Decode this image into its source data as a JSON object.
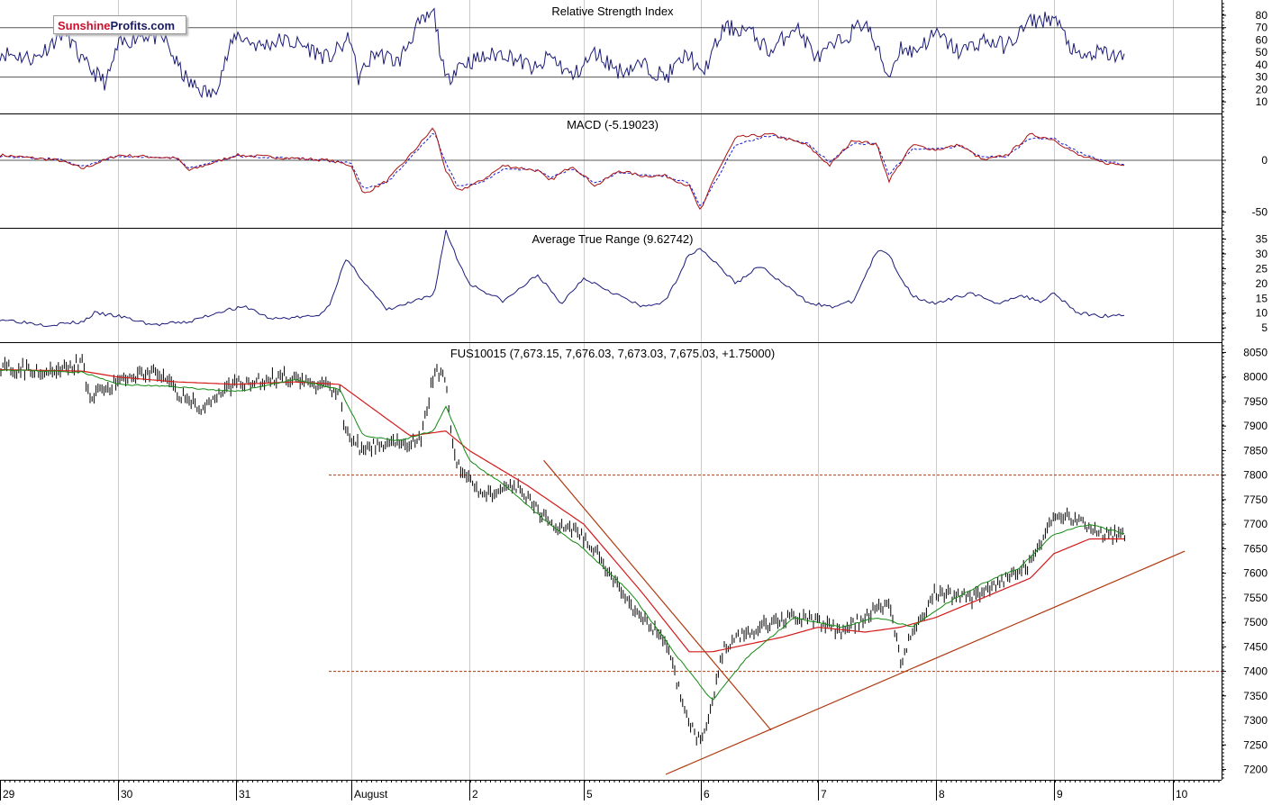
{
  "brand": {
    "part1": "Sunshine",
    "part2": "Profits.com"
  },
  "colors": {
    "background": "#ffffff",
    "axis": "#000000",
    "grid": "#cccccc",
    "indicator_line": "#1a1a7a",
    "price_bars": "#000000",
    "sma_fast": "#138a13",
    "sma_slow": "#d41a1a",
    "macd_signal": "#1a1acc",
    "macd_line": "#aa1111",
    "trendline": "#b03a10",
    "support": "#b03a10"
  },
  "x_axis": {
    "labels": [
      "29",
      "30",
      "31",
      "August",
      "2",
      "5",
      "6",
      "7",
      "8",
      "9",
      "10"
    ]
  },
  "chart_data": [
    {
      "type": "line",
      "title": "Relative Strength Index",
      "y_ticks": [
        "80",
        "70",
        "60",
        "50",
        "40",
        "30",
        "20",
        "10"
      ],
      "reference_lines": [
        70,
        30
      ],
      "ylim": [
        5,
        88
      ],
      "series": [
        {
          "x": [
            0,
            0.3,
            0.55,
            0.7,
            0.9,
            1.0,
            1.2,
            1.4,
            1.5,
            1.6,
            1.8,
            2.0,
            2.2,
            2.4,
            2.6,
            2.8,
            3.0,
            3.05,
            3.2,
            3.4,
            3.55,
            3.7,
            3.8,
            3.9,
            4.1,
            4.3,
            4.6,
            4.7,
            4.9,
            5.1,
            5.3,
            5.5,
            5.7,
            5.9,
            6.0,
            6.2,
            6.4,
            6.6,
            6.8,
            7.0,
            7.2,
            7.4,
            7.6,
            7.7,
            7.8,
            8.0,
            8.2,
            8.4,
            8.6,
            8.8,
            9.0,
            9.2,
            9.4,
            9.6
          ],
          "values": [
            50,
            45,
            68,
            42,
            25,
            55,
            65,
            60,
            40,
            25,
            15,
            65,
            55,
            60,
            55,
            45,
            62,
            28,
            50,
            42,
            70,
            82,
            25,
            40,
            45,
            50,
            35,
            48,
            30,
            50,
            35,
            40,
            30,
            50,
            30,
            70,
            68,
            50,
            72,
            45,
            60,
            75,
            30,
            55,
            50,
            65,
            50,
            60,
            55,
            75,
            78,
            45,
            50,
            45
          ]
        }
      ]
    },
    {
      "type": "line",
      "title": "MACD (-5.19023)",
      "y_ticks": [
        "0",
        "-50"
      ],
      "reference_lines": [
        0
      ],
      "ylim": [
        -60,
        40
      ],
      "series": [
        {
          "name": "MACD",
          "x": [
            0,
            0.5,
            0.7,
            1.0,
            1.5,
            1.6,
            2.0,
            2.5,
            2.8,
            3.0,
            3.1,
            3.3,
            3.5,
            3.7,
            3.8,
            3.9,
            4.1,
            4.3,
            4.6,
            4.7,
            4.9,
            5.1,
            5.3,
            5.5,
            5.7,
            5.9,
            6.0,
            6.1,
            6.3,
            6.6,
            6.9,
            7.1,
            7.3,
            7.5,
            7.6,
            7.8,
            8.0,
            8.2,
            8.4,
            8.6,
            8.8,
            9.0,
            9.2,
            9.4,
            9.6
          ],
          "values": [
            5,
            0,
            -8,
            5,
            2,
            -10,
            5,
            2,
            0,
            -5,
            -33,
            -20,
            5,
            32,
            -10,
            -30,
            -20,
            -5,
            -10,
            -20,
            -5,
            -25,
            -10,
            -15,
            -15,
            -25,
            -50,
            -20,
            22,
            25,
            15,
            -5,
            20,
            15,
            -20,
            15,
            10,
            15,
            0,
            5,
            25,
            20,
            5,
            -2,
            -5
          ]
        },
        {
          "name": "Signal",
          "x": [
            0,
            0.5,
            0.7,
            1.0,
            1.5,
            1.6,
            2.0,
            2.5,
            2.8,
            3.0,
            3.1,
            3.3,
            3.5,
            3.7,
            3.8,
            3.9,
            4.1,
            4.3,
            4.6,
            4.7,
            4.9,
            5.1,
            5.3,
            5.5,
            5.7,
            5.9,
            6.0,
            6.1,
            6.3,
            6.6,
            6.9,
            7.1,
            7.3,
            7.5,
            7.6,
            7.8,
            8.0,
            8.2,
            8.4,
            8.6,
            8.8,
            9.0,
            9.2,
            9.4,
            9.6
          ],
          "values": [
            4,
            1,
            -6,
            4,
            2,
            -8,
            4,
            2,
            0,
            -3,
            -28,
            -22,
            2,
            28,
            -2,
            -25,
            -22,
            -8,
            -9,
            -17,
            -8,
            -22,
            -12,
            -14,
            -15,
            -22,
            -45,
            -25,
            15,
            24,
            17,
            -2,
            16,
            16,
            -14,
            11,
            11,
            14,
            3,
            4,
            21,
            21,
            8,
            0,
            -4
          ]
        }
      ]
    },
    {
      "type": "line",
      "title": "Average True Range (9.62742)",
      "y_ticks": [
        "35",
        "30",
        "25",
        "20",
        "15",
        "10",
        "5"
      ],
      "ylim": [
        2,
        37
      ],
      "series": [
        {
          "x": [
            0,
            0.4,
            0.7,
            0.8,
            1.0,
            1.3,
            1.6,
            1.9,
            2.1,
            2.3,
            2.7,
            2.8,
            2.95,
            3.0,
            3.3,
            3.7,
            3.8,
            3.9,
            4.0,
            4.3,
            4.6,
            4.8,
            5.0,
            5.2,
            5.5,
            5.7,
            5.9,
            6.0,
            6.3,
            6.5,
            6.7,
            6.9,
            7.1,
            7.3,
            7.5,
            7.6,
            7.7,
            7.8,
            8.0,
            8.3,
            8.5,
            8.7,
            8.9,
            9.0,
            9.2,
            9.4,
            9.6
          ],
          "values": [
            8,
            6,
            7,
            10,
            9,
            6,
            7,
            11,
            12,
            8,
            9,
            12,
            28,
            26,
            11,
            16,
            38,
            28,
            20,
            14,
            23,
            13,
            22,
            18,
            12,
            14,
            30,
            32,
            20,
            26,
            20,
            14,
            12,
            14,
            31,
            30,
            22,
            16,
            13,
            17,
            13,
            16,
            14,
            17,
            10,
            9,
            9.6
          ]
        }
      ]
    },
    {
      "type": "line",
      "title": "FUS10015 (7,673.15, 7,676.03, 7,673.03, 7,675.03, +1.75000)",
      "y_ticks": [
        "8050",
        "8000",
        "7950",
        "7900",
        "7850",
        "7800",
        "7750",
        "7700",
        "7650",
        "7600",
        "7550",
        "7500",
        "7450",
        "7400",
        "7350",
        "7300",
        "7250",
        "7200"
      ],
      "ylim": [
        7190,
        8060
      ],
      "series": [
        {
          "name": "Price",
          "x": [
            0,
            0.5,
            0.7,
            0.75,
            1.0,
            1.3,
            1.6,
            1.7,
            1.9,
            2.0,
            2.5,
            2.8,
            2.9,
            2.95,
            3.1,
            3.3,
            3.5,
            3.6,
            3.7,
            3.8,
            3.85,
            3.9,
            4.1,
            4.4,
            4.7,
            4.9,
            5.1,
            5.4,
            5.7,
            5.85,
            6.0,
            6.1,
            6.2,
            6.3,
            6.6,
            6.9,
            7.2,
            7.4,
            7.6,
            7.7,
            7.8,
            8.0,
            8.3,
            8.6,
            8.8,
            9.0,
            9.2,
            9.4,
            9.6
          ],
          "values": [
            8020,
            8010,
            8030,
            7960,
            7990,
            8010,
            7950,
            7940,
            7970,
            7990,
            8000,
            7980,
            7970,
            7890,
            7850,
            7870,
            7860,
            7880,
            8010,
            8000,
            7870,
            7820,
            7760,
            7780,
            7700,
            7690,
            7650,
            7530,
            7460,
            7330,
            7250,
            7340,
            7450,
            7470,
            7500,
            7510,
            7480,
            7510,
            7540,
            7420,
            7480,
            7560,
            7550,
            7590,
            7620,
            7720,
            7710,
            7680,
            7675
          ]
        },
        {
          "name": "SMA fast",
          "x": [
            0,
            0.7,
            1.0,
            1.5,
            2.0,
            2.5,
            2.9,
            3.1,
            3.4,
            3.7,
            3.8,
            4.0,
            4.3,
            4.7,
            5.0,
            5.4,
            5.8,
            6.1,
            6.4,
            6.8,
            7.2,
            7.5,
            7.8,
            8.1,
            8.4,
            8.7,
            9.0,
            9.3,
            9.6
          ],
          "values": [
            8015,
            8010,
            7985,
            7980,
            7970,
            7995,
            7975,
            7880,
            7870,
            7890,
            7940,
            7830,
            7780,
            7700,
            7650,
            7560,
            7430,
            7340,
            7430,
            7510,
            7490,
            7510,
            7490,
            7540,
            7580,
            7610,
            7680,
            7700,
            7680
          ]
        },
        {
          "name": "SMA slow",
          "x": [
            0,
            0.7,
            1.0,
            1.5,
            2.0,
            2.5,
            2.9,
            3.1,
            3.5,
            3.8,
            4.0,
            4.5,
            5.0,
            5.5,
            5.9,
            6.1,
            6.3,
            6.7,
            7.0,
            7.4,
            7.7,
            8.0,
            8.4,
            8.8,
            9.0,
            9.3,
            9.6
          ],
          "values": [
            8015,
            8012,
            8000,
            7990,
            7985,
            7990,
            7985,
            7950,
            7880,
            7890,
            7850,
            7780,
            7700,
            7560,
            7440,
            7440,
            7450,
            7470,
            7490,
            7480,
            7490,
            7510,
            7550,
            7590,
            7640,
            7670,
            7670
          ]
        }
      ],
      "annotations": {
        "horizontal_levels": [
          7800,
          7400
        ],
        "trendlines": [
          {
            "x": [
              4.65,
              6.6
            ],
            "values": [
              7830,
              7280
            ]
          },
          {
            "x": [
              5.7,
              10.1
            ],
            "values": [
              7190,
              7645
            ]
          }
        ]
      }
    }
  ]
}
